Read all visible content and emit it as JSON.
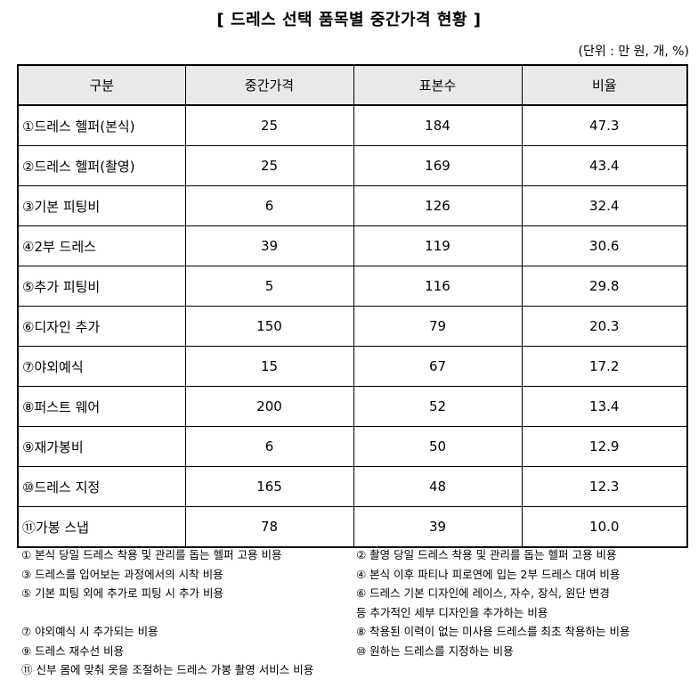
{
  "title": "[ 드레스 선택 품목별 중간가격 현황 ]",
  "unit": "(단위 : 만 원, 개, %)",
  "table": {
    "headers": [
      "구분",
      "중간가격",
      "표본수",
      "비율"
    ],
    "rows": [
      {
        "name": "①드레스 헬퍼(본식)",
        "price": "25",
        "samples": "184",
        "ratio": "47.3"
      },
      {
        "name": "②드레스 헬퍼(촬영)",
        "price": "25",
        "samples": "169",
        "ratio": "43.4"
      },
      {
        "name": "③기본 피팅비",
        "price": "6",
        "samples": "126",
        "ratio": "32.4"
      },
      {
        "name": "④2부 드레스",
        "price": "39",
        "samples": "119",
        "ratio": "30.6"
      },
      {
        "name": "⑤추가 피팅비",
        "price": "5",
        "samples": "116",
        "ratio": "29.8"
      },
      {
        "name": "⑥디자인 추가",
        "price": "150",
        "samples": "79",
        "ratio": "20.3"
      },
      {
        "name": "⑦야외예식",
        "price": "15",
        "samples": "67",
        "ratio": "17.2"
      },
      {
        "name": "⑧퍼스트 웨어",
        "price": "200",
        "samples": "52",
        "ratio": "13.4"
      },
      {
        "name": "⑨재가봉비",
        "price": "6",
        "samples": "50",
        "ratio": "12.9"
      },
      {
        "name": "⑩드레스 지정",
        "price": "165",
        "samples": "48",
        "ratio": "12.3"
      },
      {
        "name": "⑪가봉 스냅",
        "price": "78",
        "samples": "39",
        "ratio": "10.0"
      }
    ]
  },
  "notes": {
    "n1": "① 본식 당일 드레스 착용 및 관리를 돕는 헬퍼 고용 비용",
    "n2": "② 촬영 당일 드레스 착용 및 관리를 돕는 헬퍼 고용 비용",
    "n3": "③ 드레스를 입어보는 과정에서의 시착 비용",
    "n4": "④ 본식 이후 파티나 피로연에 입는 2부 드레스 대여 비용",
    "n5": "⑤ 기본 피팅 외에 추가로 피팅 시 추가 비용",
    "n6a": "⑥ 드레스 기본 디자인에 레이스, 자수, 장식, 원단 변경",
    "n6b": "등 추가적인 세부 디자인을 추가하는 비용",
    "n7": "⑦ 야외예식 시 추가되는 비용",
    "n8": "⑧ 착용된 이력이 없는 미사용 드레스를 최초 착용하는 비용",
    "n9": "⑨ 드레스 재수선 비용",
    "n10": "⑩ 원하는 드레스를 지정하는 비용",
    "n11": "⑪ 신부 몸에 맞춰 옷을 조절하는 드레스 가봉 촬영 서비스 비용"
  }
}
